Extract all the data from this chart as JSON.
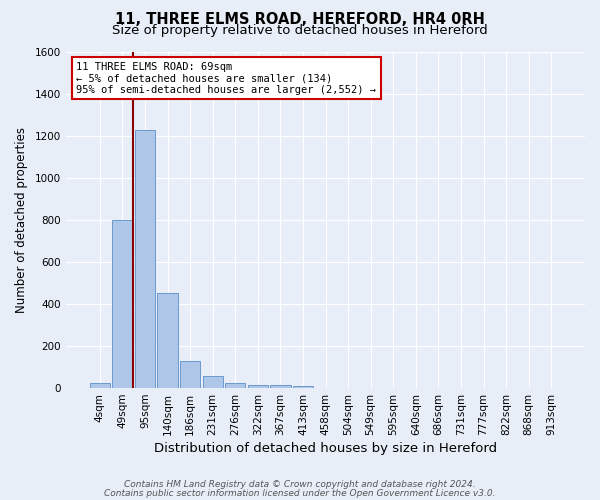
{
  "title": "11, THREE ELMS ROAD, HEREFORD, HR4 0RH",
  "subtitle": "Size of property relative to detached houses in Hereford",
  "xlabel": "Distribution of detached houses by size in Hereford",
  "ylabel": "Number of detached properties",
  "bar_values": [
    25,
    800,
    1225,
    450,
    130,
    55,
    25,
    15,
    13,
    12,
    0,
    0,
    0,
    0,
    0,
    0,
    0,
    0,
    0,
    0,
    0
  ],
  "bar_labels": [
    "4sqm",
    "49sqm",
    "95sqm",
    "140sqm",
    "186sqm",
    "231sqm",
    "276sqm",
    "322sqm",
    "367sqm",
    "413sqm",
    "458sqm",
    "504sqm",
    "549sqm",
    "595sqm",
    "640sqm",
    "686sqm",
    "731sqm",
    "777sqm",
    "822sqm",
    "868sqm",
    "913sqm"
  ],
  "bar_color": "#aec6e8",
  "bar_edge_color": "#5b8fc9",
  "background_color": "#e8eef8",
  "grid_color": "#ffffff",
  "vline_color": "#8b0000",
  "vline_pos": 1.45,
  "annotation_text": "11 THREE ELMS ROAD: 69sqm\n← 5% of detached houses are smaller (134)\n95% of semi-detached houses are larger (2,552) →",
  "annotation_box_color": "#ffffff",
  "annotation_box_edge": "#cc0000",
  "ylim": [
    0,
    1600
  ],
  "yticks": [
    0,
    200,
    400,
    600,
    800,
    1000,
    1200,
    1400,
    1600
  ],
  "footer_line1": "Contains HM Land Registry data © Crown copyright and database right 2024.",
  "footer_line2": "Contains public sector information licensed under the Open Government Licence v3.0.",
  "title_fontsize": 10.5,
  "subtitle_fontsize": 9.5,
  "xlabel_fontsize": 9.5,
  "ylabel_fontsize": 8.5,
  "tick_fontsize": 7.5,
  "annotation_fontsize": 7.5,
  "footer_fontsize": 6.5
}
